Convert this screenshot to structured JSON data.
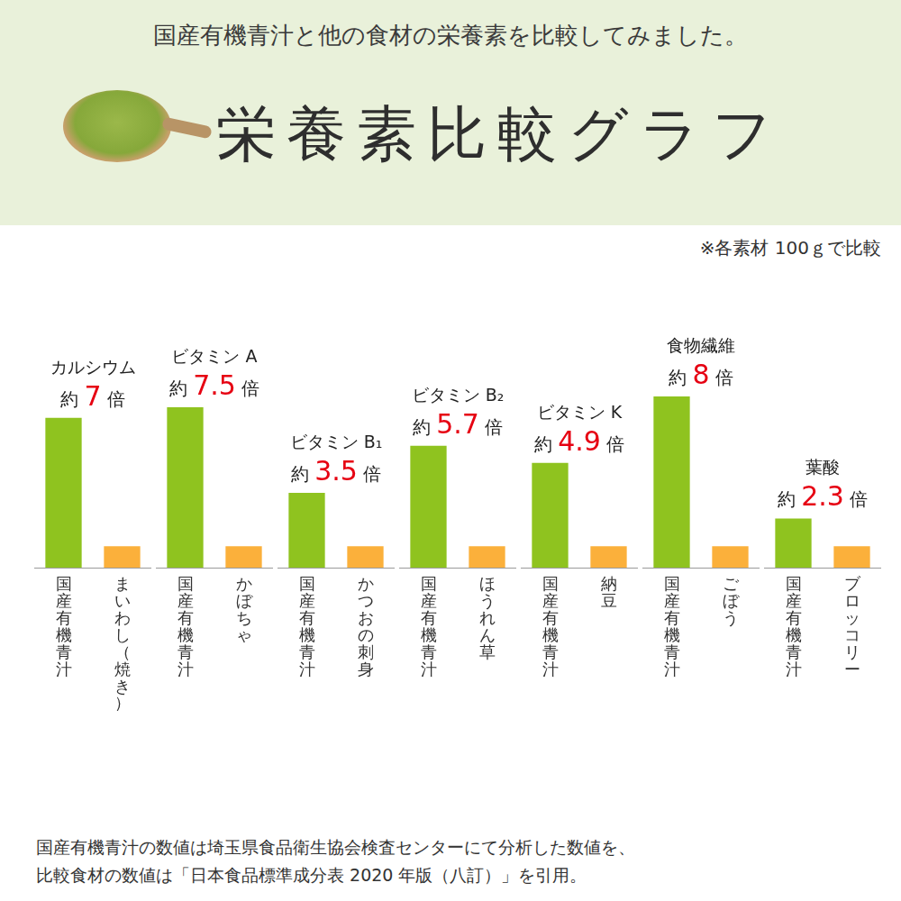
{
  "header": {
    "lead": "国産有機青汁と他の食材の栄養素を比較してみました。",
    "title": "栄養素比較グラフ"
  },
  "note": "※各素材 100ｇで比較",
  "chart_data": [
    {
      "type": "bar",
      "title": "カルシウム",
      "ratio_prefix": "約",
      "ratio_suffix": "倍",
      "categories": [
        "国産有機青汁",
        "まいわし（焼き）"
      ],
      "values": [
        7,
        1
      ],
      "colors": [
        "#8fc31f",
        "#fbb03b"
      ],
      "ylim": [
        0,
        8
      ],
      "yticks": [],
      "grid": false,
      "tick_labels": "x"
    },
    {
      "type": "bar",
      "title": "ビタミン A",
      "ratio_prefix": "約",
      "ratio_suffix": "倍",
      "categories": [
        "国産有機青汁",
        "かぼちゃ"
      ],
      "values": [
        7.5,
        1
      ],
      "colors": [
        "#8fc31f",
        "#fbb03b"
      ],
      "ylim": [
        0,
        8
      ],
      "yticks": [],
      "grid": false,
      "tick_labels": "x"
    },
    {
      "type": "bar",
      "title": "ビタミン B₁",
      "ratio_prefix": "約",
      "ratio_suffix": "倍",
      "categories": [
        "国産有機青汁",
        "かつおの刺身"
      ],
      "values": [
        3.5,
        1
      ],
      "colors": [
        "#8fc31f",
        "#fbb03b"
      ],
      "ylim": [
        0,
        8
      ],
      "yticks": [],
      "grid": false,
      "tick_labels": "x"
    },
    {
      "type": "bar",
      "title": "ビタミン B₂",
      "ratio_prefix": "約",
      "ratio_suffix": "倍",
      "categories": [
        "国産有機青汁",
        "ほうれん草"
      ],
      "values": [
        5.7,
        1
      ],
      "colors": [
        "#8fc31f",
        "#fbb03b"
      ],
      "ylim": [
        0,
        8
      ],
      "yticks": [],
      "grid": false,
      "tick_labels": "x"
    },
    {
      "type": "bar",
      "title": "ビタミン K",
      "ratio_prefix": "約",
      "ratio_suffix": "倍",
      "categories": [
        "国産有機青汁",
        "納豆"
      ],
      "values": [
        4.9,
        1
      ],
      "colors": [
        "#8fc31f",
        "#fbb03b"
      ],
      "ylim": [
        0,
        8
      ],
      "yticks": [],
      "grid": false,
      "tick_labels": "x"
    },
    {
      "type": "bar",
      "title": "食物繊維",
      "ratio_prefix": "約",
      "ratio_suffix": "倍",
      "categories": [
        "国産有機青汁",
        "ごぼう"
      ],
      "values": [
        8,
        1
      ],
      "colors": [
        "#8fc31f",
        "#fbb03b"
      ],
      "ylim": [
        0,
        8
      ],
      "yticks": [],
      "grid": false,
      "tick_labels": "x"
    },
    {
      "type": "bar",
      "title": "葉酸",
      "ratio_prefix": "約",
      "ratio_suffix": "倍",
      "categories": [
        "国産有機青汁",
        "ブロッコリー"
      ],
      "values": [
        2.3,
        1
      ],
      "colors": [
        "#8fc31f",
        "#fbb03b"
      ],
      "ylim": [
        0,
        8
      ],
      "yticks": [],
      "grid": false,
      "tick_labels": "x"
    }
  ],
  "footnote": [
    "国産有機青汁の数値は埼玉県食品衛生協会検査センターにて分析した数値を、",
    "比較食材の数値は「日本食品標準成分表 2020 年版（八訂）」を引用。"
  ]
}
